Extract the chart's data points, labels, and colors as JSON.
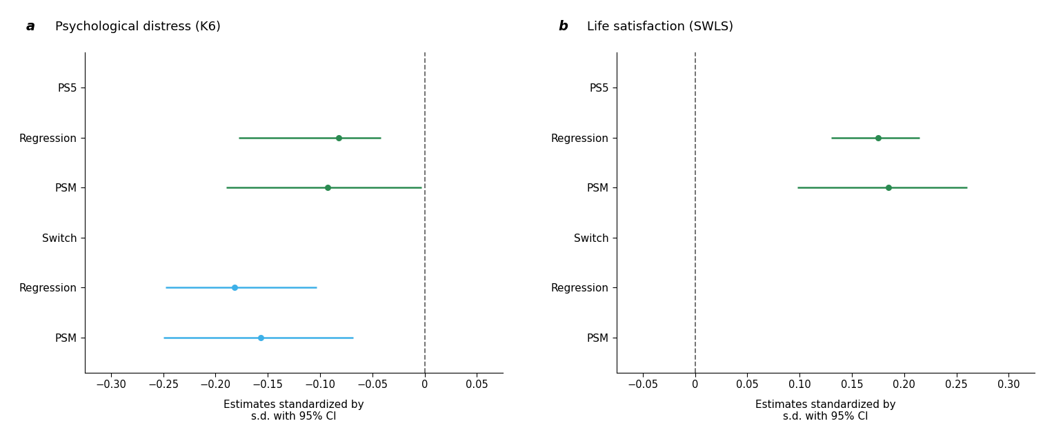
{
  "panel_a": {
    "title": "Psychological distress (K6)",
    "panel_label": "a",
    "xlim": [
      -0.325,
      0.075
    ],
    "xticks": [
      -0.3,
      -0.25,
      -0.2,
      -0.15,
      -0.1,
      -0.05,
      0.0,
      0.05
    ],
    "xtick_labels": [
      "−0.30",
      "−0.25",
      "−0.20",
      "−0.15",
      "−0.10",
      "−0.05",
      "0",
      "0.05"
    ],
    "vline": 0.0,
    "xlabel": "Estimates standardized by\ns.d. with 95% CI",
    "rows": [
      {
        "label": "PS5",
        "y": 5,
        "estimate": null,
        "ci_lo": null,
        "ci_hi": null,
        "color": null
      },
      {
        "label": "Regression",
        "y": 4,
        "estimate": -0.082,
        "ci_lo": -0.178,
        "ci_hi": -0.042,
        "color": "#2a8a50"
      },
      {
        "label": "PSM",
        "y": 3,
        "estimate": -0.093,
        "ci_lo": -0.19,
        "ci_hi": -0.003,
        "color": "#2a8a50"
      },
      {
        "label": "Switch",
        "y": 2,
        "estimate": null,
        "ci_lo": null,
        "ci_hi": null,
        "color": null
      },
      {
        "label": "Regression",
        "y": 1,
        "estimate": -0.182,
        "ci_lo": -0.248,
        "ci_hi": -0.103,
        "color": "#3db0e8"
      },
      {
        "label": "PSM",
        "y": 0,
        "estimate": -0.157,
        "ci_lo": -0.25,
        "ci_hi": -0.068,
        "color": "#3db0e8"
      }
    ]
  },
  "panel_b": {
    "title": "Life satisfaction (SWLS)",
    "panel_label": "b",
    "xlim": [
      -0.075,
      0.325
    ],
    "xticks": [
      -0.05,
      0.0,
      0.05,
      0.1,
      0.15,
      0.2,
      0.25,
      0.3
    ],
    "xtick_labels": [
      "−0.05",
      "0",
      "0.05",
      "0.10",
      "0.15",
      "0.20",
      "0.25",
      "0.30"
    ],
    "vline": 0.0,
    "xlabel": "Estimates standardized by\ns.d. with 95% CI",
    "rows": [
      {
        "label": "PS5",
        "y": 5,
        "estimate": null,
        "ci_lo": null,
        "ci_hi": null,
        "color": null
      },
      {
        "label": "Regression",
        "y": 4,
        "estimate": 0.175,
        "ci_lo": 0.13,
        "ci_hi": 0.215,
        "color": "#2a8a50"
      },
      {
        "label": "PSM",
        "y": 3,
        "estimate": 0.185,
        "ci_lo": 0.098,
        "ci_hi": 0.26,
        "color": "#2a8a50"
      },
      {
        "label": "Switch",
        "y": 2,
        "estimate": null,
        "ci_lo": null,
        "ci_hi": null,
        "color": null
      },
      {
        "label": "Regression",
        "y": 1,
        "estimate": null,
        "ci_lo": null,
        "ci_hi": null,
        "color": null
      },
      {
        "label": "PSM",
        "y": 0,
        "estimate": null,
        "ci_lo": null,
        "ci_hi": null,
        "color": null
      }
    ]
  },
  "green_color": "#2a8a50",
  "blue_color": "#3db0e8",
  "dashed_color": "#666666",
  "background_color": "#ffffff",
  "title_fontsize": 13,
  "label_fontsize": 11,
  "tick_fontsize": 10.5,
  "marker_size": 6.5
}
